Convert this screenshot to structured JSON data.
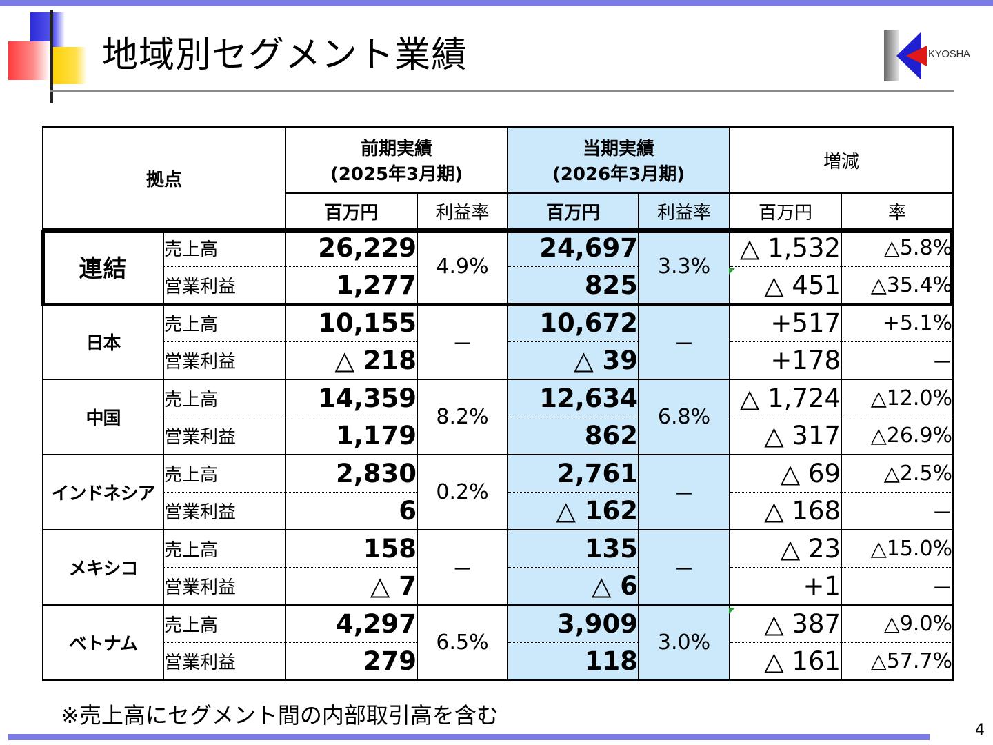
{
  "title": "地域別セグメント業績",
  "logo_text": "KYOSHA",
  "table": {
    "header": {
      "location": "拠点",
      "prev_line1": "前期実績",
      "prev_line2": "(2025年3月期)",
      "curr_line1": "当期実績",
      "curr_line2": "(2026年3月期)",
      "diff": "増減",
      "million_yen": "百万円",
      "margin": "利益率",
      "rate": "率"
    },
    "rows": [
      {
        "name": "連結",
        "sales_label": "売上高",
        "op_label": "営業利益",
        "prev_sales": "26,229",
        "prev_op": "1,277",
        "prev_margin": "4.9%",
        "curr_sales": "24,697",
        "curr_op": "825",
        "curr_margin": "3.3%",
        "diff_sales": "△ 1,532",
        "diff_op": "△ 451",
        "rate_sales": "△5.8%",
        "rate_op": "△35.4%"
      },
      {
        "name": "日本",
        "sales_label": "売上高",
        "op_label": "営業利益",
        "prev_sales": "10,155",
        "prev_op": "△ 218",
        "prev_margin": "－",
        "curr_sales": "10,672",
        "curr_op": "△ 39",
        "curr_margin": "－",
        "diff_sales": "+517",
        "diff_op": "+178",
        "rate_sales": "+5.1%",
        "rate_op": "－"
      },
      {
        "name": "中国",
        "sales_label": "売上高",
        "op_label": "営業利益",
        "prev_sales": "14,359",
        "prev_op": "1,179",
        "prev_margin": "8.2%",
        "curr_sales": "12,634",
        "curr_op": "862",
        "curr_margin": "6.8%",
        "diff_sales": "△ 1,724",
        "diff_op": "△ 317",
        "rate_sales": "△12.0%",
        "rate_op": "△26.9%"
      },
      {
        "name": "インドネシア",
        "sales_label": "売上高",
        "op_label": "営業利益",
        "prev_sales": "2,830",
        "prev_op": "6",
        "prev_margin": "0.2%",
        "curr_sales": "2,761",
        "curr_op": "△ 162",
        "curr_margin": "－",
        "diff_sales": "△ 69",
        "diff_op": "△ 168",
        "rate_sales": "△2.5%",
        "rate_op": "－"
      },
      {
        "name": "メキシコ",
        "sales_label": "売上高",
        "op_label": "営業利益",
        "prev_sales": "158",
        "prev_op": "△ 7",
        "prev_margin": "－",
        "curr_sales": "135",
        "curr_op": "△ 6",
        "curr_margin": "－",
        "diff_sales": "△ 23",
        "diff_op": "+1",
        "rate_sales": "△15.0%",
        "rate_op": "－"
      },
      {
        "name": "ベトナム",
        "sales_label": "売上高",
        "op_label": "営業利益",
        "prev_sales": "4,297",
        "prev_op": "279",
        "prev_margin": "6.5%",
        "curr_sales": "3,909",
        "curr_op": "118",
        "curr_margin": "3.0%",
        "diff_sales": "△ 387",
        "diff_op": "△ 161",
        "rate_sales": "△9.0%",
        "rate_op": "△57.7%"
      }
    ]
  },
  "footnote": "※売上高にセグメント間の内部取引高を含む",
  "page_number": "4"
}
